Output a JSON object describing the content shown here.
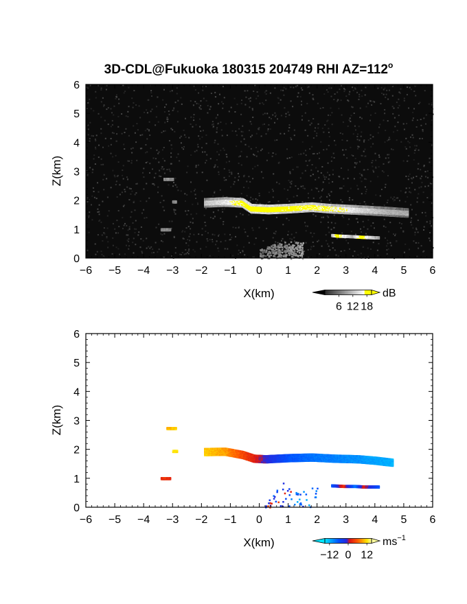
{
  "title": "3D-CDL@Fukuoka 180315 204749 RHI AZ=112",
  "title_sup": "o",
  "chart_data": [
    {
      "type": "heatmap",
      "panel": "reflectivity",
      "xlabel": "X(km)",
      "ylabel": "Z(km)",
      "xlim": [
        -6,
        6
      ],
      "ylim": [
        0,
        6
      ],
      "x_ticks": [
        "−6",
        "−5",
        "−4",
        "−3",
        "−2",
        "−1",
        "0",
        "1",
        "2",
        "3",
        "4",
        "5",
        "6"
      ],
      "y_ticks": [
        "0",
        "1",
        "2",
        "3",
        "4",
        "5",
        "6"
      ],
      "background": "#0c0c0c",
      "colorbar": {
        "unit": "dB",
        "ticks": [
          "6",
          "12",
          "18"
        ],
        "tick_values": [
          6,
          12,
          18
        ],
        "range": [
          0,
          20
        ]
      },
      "features": [
        {
          "name": "cloud-layer",
          "x": [
            -1.9,
            -1.2,
            -0.6,
            -0.3,
            0.3,
            1.0,
            1.8,
            2.4,
            3.0,
            3.8,
            4.5,
            5.1
          ],
          "z": [
            1.95,
            1.98,
            1.95,
            1.75,
            1.72,
            1.75,
            1.8,
            1.75,
            1.72,
            1.68,
            1.64,
            1.6
          ],
          "dB": [
            12,
            15,
            18,
            19,
            19,
            18,
            18,
            17,
            16,
            13,
            11,
            10
          ]
        },
        {
          "name": "aloft-patch-1",
          "x": [
            -3.3,
            -3.0
          ],
          "z": [
            2.76,
            2.76
          ],
          "dB": [
            8,
            8
          ]
        },
        {
          "name": "aloft-patch-2",
          "x": [
            -3.0,
            -2.9
          ],
          "z": [
            1.98,
            1.98
          ],
          "dB": [
            7,
            7
          ]
        },
        {
          "name": "low-patch-west",
          "x": [
            -3.4,
            -3.1
          ],
          "z": [
            1.02,
            1.02
          ],
          "dB": [
            8,
            8
          ]
        },
        {
          "name": "low-layer-east",
          "x": [
            2.5,
            2.7,
            3.2,
            3.5,
            4.1
          ],
          "z": [
            0.82,
            0.8,
            0.78,
            0.76,
            0.74
          ],
          "dB": [
            12,
            19,
            11,
            19,
            10
          ]
        },
        {
          "name": "near-ground-clutter",
          "x": [
            0.0,
            0.5,
            1.0,
            1.5
          ],
          "z": [
            0.3,
            0.5,
            0.6,
            0.55
          ],
          "dB": [
            6,
            7,
            8,
            9
          ]
        }
      ]
    },
    {
      "type": "heatmap",
      "panel": "doppler-velocity",
      "xlabel": "X(km)",
      "ylabel": "Z(km)",
      "xlim": [
        -6,
        6
      ],
      "ylim": [
        0,
        6
      ],
      "x_ticks": [
        "−6",
        "−5",
        "−4",
        "−3",
        "−2",
        "−1",
        "0",
        "1",
        "2",
        "3",
        "4",
        "5",
        "6"
      ],
      "y_ticks": [
        "0",
        "1",
        "2",
        "3",
        "4",
        "5",
        "6"
      ],
      "colorbar": {
        "unit": "ms",
        "unit_sup": "−1",
        "ticks": [
          "−12",
          "0",
          "12"
        ],
        "tick_values": [
          -12,
          0,
          12
        ],
        "range": [
          -15,
          15
        ]
      },
      "features": [
        {
          "name": "cloud-layer",
          "x": [
            -1.9,
            -1.2,
            -0.6,
            -0.2,
            0.2,
            1.0,
            1.8,
            2.6,
            3.4,
            4.0,
            4.6
          ],
          "z": [
            1.95,
            1.96,
            1.85,
            1.72,
            1.7,
            1.74,
            1.76,
            1.72,
            1.7,
            1.65,
            1.58
          ],
          "v": [
            11,
            9,
            5,
            2,
            -1,
            -6,
            -8,
            -9,
            -10,
            -11,
            -12
          ]
        },
        {
          "name": "aloft-patch-1",
          "x": [
            -3.2,
            -2.9
          ],
          "z": [
            2.76,
            2.76
          ],
          "v": [
            10,
            11
          ]
        },
        {
          "name": "aloft-patch-2",
          "x": [
            -3.0,
            -2.85
          ],
          "z": [
            1.97,
            1.97
          ],
          "v": [
            12,
            12
          ]
        },
        {
          "name": "low-patch-west",
          "x": [
            -3.4,
            -3.1
          ],
          "z": [
            1.03,
            1.03
          ],
          "v": [
            3,
            3
          ]
        },
        {
          "name": "low-layer-east",
          "x": [
            2.5,
            2.9,
            3.3,
            3.6,
            4.1
          ],
          "z": [
            0.78,
            0.76,
            0.76,
            0.74,
            0.74
          ],
          "v": [
            -6,
            3,
            -8,
            2,
            -6
          ]
        },
        {
          "name": "near-ground-scatter",
          "x": [
            0.2,
            0.5,
            0.8,
            1.2,
            1.6,
            2.0
          ],
          "z": [
            0.1,
            0.5,
            0.9,
            0.5,
            0.7,
            1.0
          ],
          "v": [
            3,
            -5,
            4,
            -6,
            -8,
            -7
          ]
        }
      ]
    }
  ]
}
